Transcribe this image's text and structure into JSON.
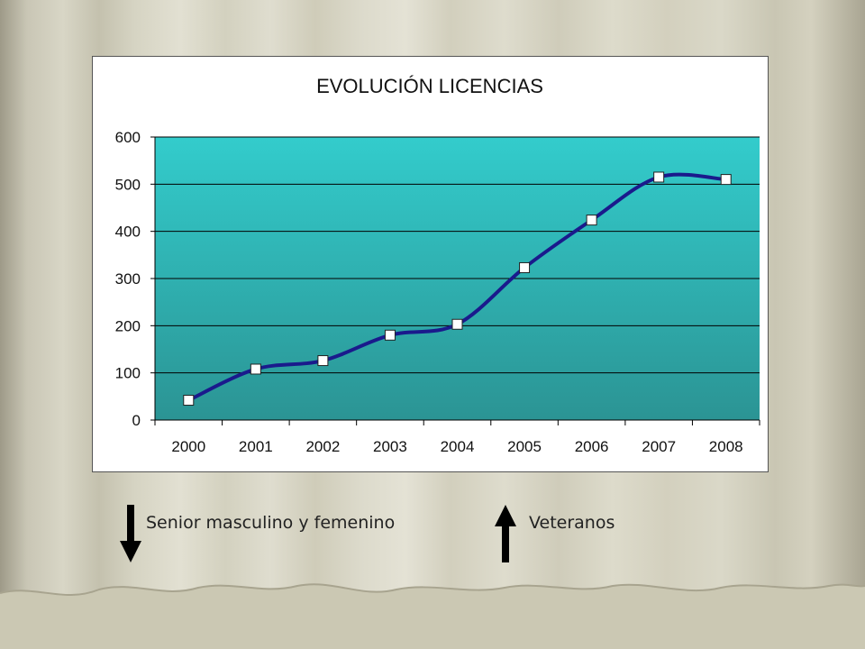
{
  "chart_data": {
    "type": "line",
    "title": "EVOLUCIÓN LICENCIAS",
    "xlabel": "",
    "ylabel": "",
    "categories": [
      "2000",
      "2001",
      "2002",
      "2003",
      "2004",
      "2005",
      "2006",
      "2007",
      "2008"
    ],
    "series": [
      {
        "values": [
          42,
          108,
          126,
          180,
          203,
          323,
          424,
          515,
          510
        ],
        "color": "#1a1a8c"
      }
    ],
    "ylim": [
      0,
      600
    ],
    "yticks": [
      0,
      100,
      200,
      300,
      400,
      500,
      600
    ],
    "grid": true,
    "smooth": true,
    "marker": "square",
    "plot_background": [
      "#33cccc",
      "#2b9696"
    ]
  },
  "annotations": {
    "down_label": "Senior masculino y femenino",
    "up_label": "Veteranos",
    "down_icon": "arrow-down-icon",
    "up_icon": "arrow-up-icon"
  }
}
